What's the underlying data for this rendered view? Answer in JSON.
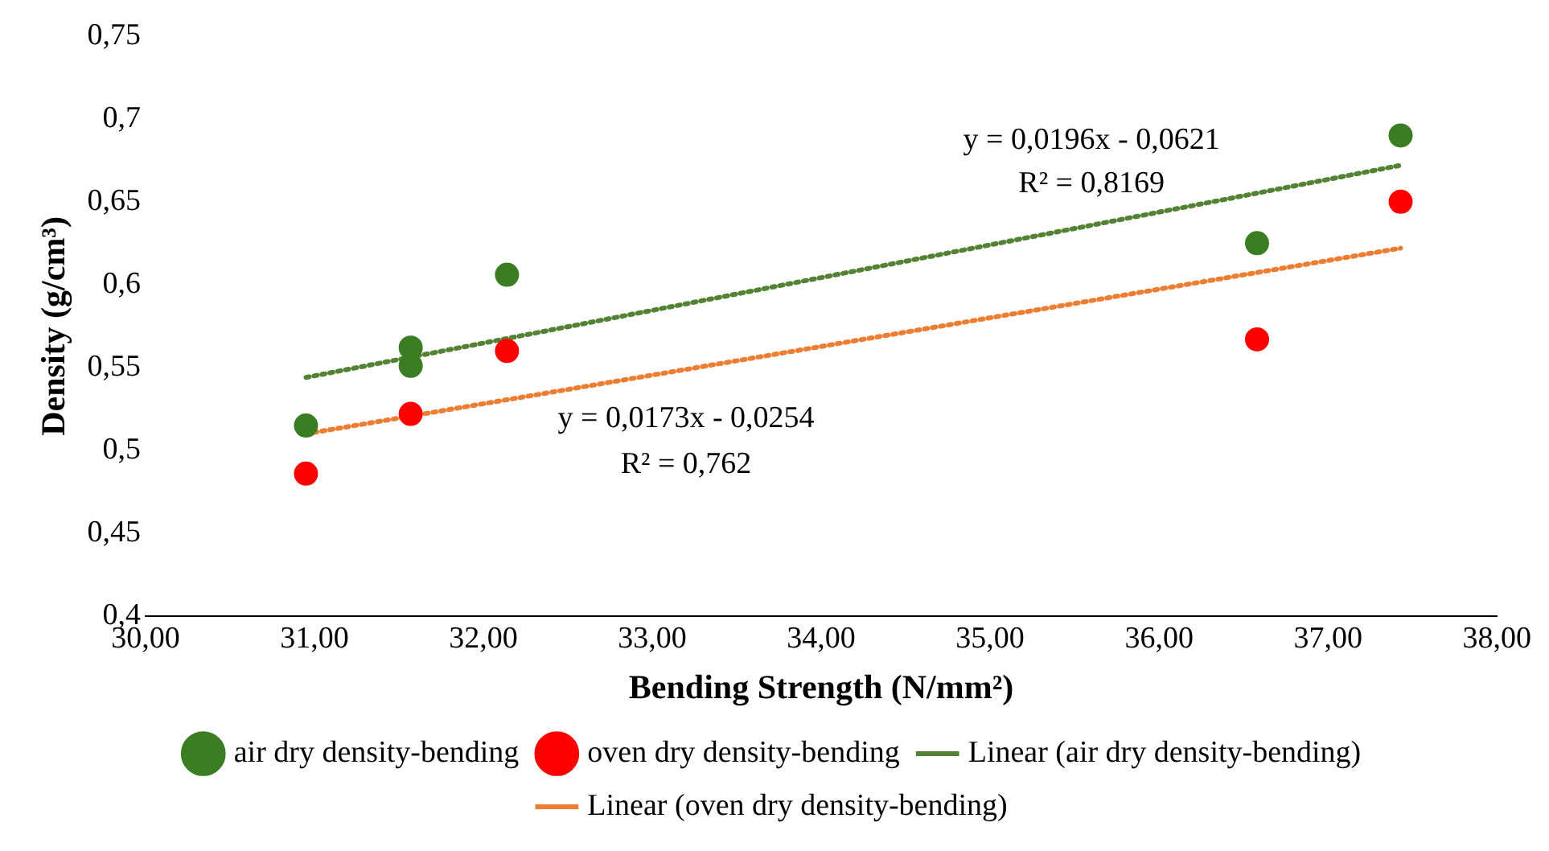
{
  "chart_data": {
    "type": "scatter",
    "xlabel": "Bending Strength (N/mm²)",
    "ylabel": "Density (g/cm³)",
    "xlim": [
      30,
      38
    ],
    "xticks": [
      {
        "value": 30,
        "label": "30,00"
      },
      {
        "value": 31,
        "label": "31,00"
      },
      {
        "value": 32,
        "label": "32,00"
      },
      {
        "value": 33,
        "label": "33,00"
      },
      {
        "value": 34,
        "label": "34,00"
      },
      {
        "value": 35,
        "label": "35,00"
      },
      {
        "value": 36,
        "label": "36,00"
      },
      {
        "value": 37,
        "label": "37,00"
      },
      {
        "value": 38,
        "label": "38,00"
      }
    ],
    "ylim": [
      0.4,
      0.75
    ],
    "yticks": [
      {
        "value": 0.4,
        "label": "0,4"
      },
      {
        "value": 0.45,
        "label": "0,45"
      },
      {
        "value": 0.5,
        "label": "0,5"
      },
      {
        "value": 0.55,
        "label": "0,55"
      },
      {
        "value": 0.6,
        "label": "0,6"
      },
      {
        "value": 0.65,
        "label": "0,65"
      },
      {
        "value": 0.7,
        "label": "0,7"
      },
      {
        "value": 0.75,
        "label": "0,75"
      }
    ],
    "grid": false,
    "legend": "bottom",
    "series": [
      {
        "name": "air dry density-bending",
        "type": "scatter",
        "marker": "circle",
        "color": "#3a7d22",
        "x": [
          30.95,
          31.57,
          31.57,
          32.14,
          36.58,
          37.43
        ],
        "values": [
          0.515,
          0.562,
          0.551,
          0.606,
          0.625,
          0.69
        ]
      },
      {
        "name": "oven dry density-bending",
        "type": "scatter",
        "marker": "circle",
        "color": "#ff0000",
        "x": [
          30.95,
          31.57,
          32.14,
          36.58,
          37.43
        ],
        "values": [
          0.486,
          0.522,
          0.56,
          0.567,
          0.65
        ]
      },
      {
        "name": "Linear (air dry density-bending)",
        "type": "line",
        "marker": "none",
        "line_style": "dotted",
        "color": "#548235",
        "x": [
          30.95,
          37.43
        ],
        "values": [
          0.544,
          0.672
        ]
      },
      {
        "name": "Linear (oven dry density-bending)",
        "type": "line",
        "marker": "none",
        "line_style": "dotted",
        "color": "#ed7d31",
        "x": [
          30.95,
          37.43
        ],
        "values": [
          0.51,
          0.622
        ]
      }
    ],
    "annotations": [
      "y = 0,0196x - 0,0621",
      "R² = 0,8169",
      "y = 0,0173x - 0,0254",
      "R² = 0,762"
    ]
  }
}
